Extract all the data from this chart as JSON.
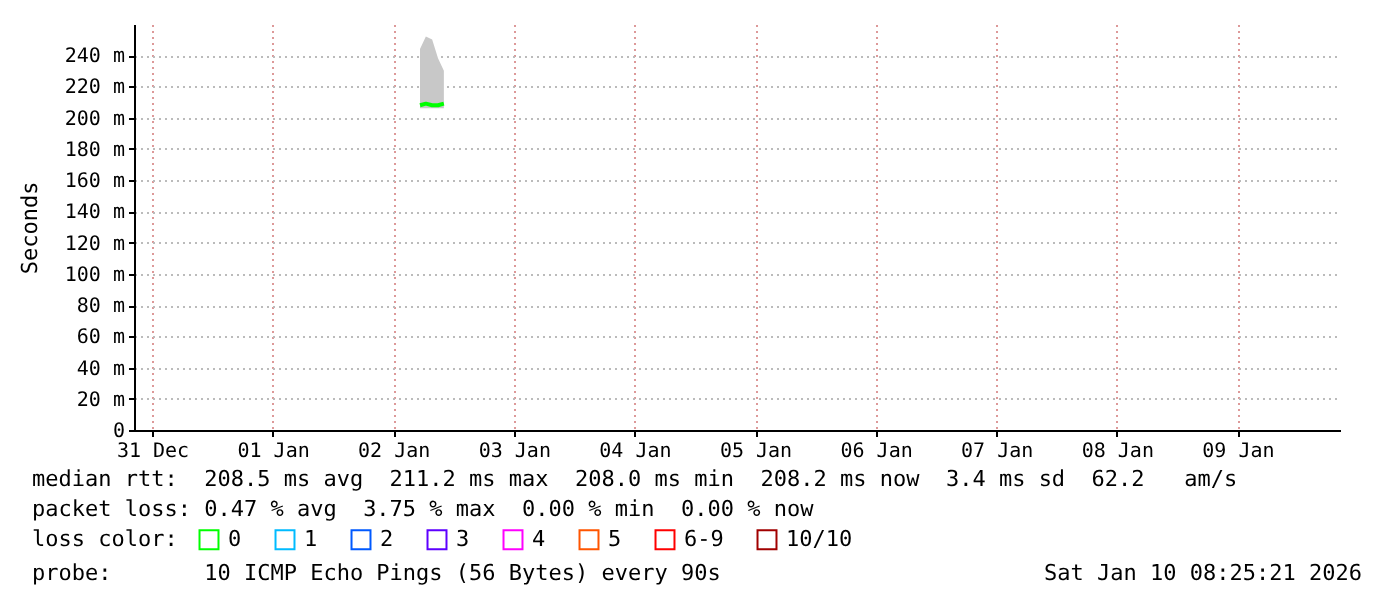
{
  "chart_data": {
    "type": "line",
    "ylabel": "Seconds",
    "x": [
      "2026-01-02T17:20",
      "2026-01-02T18:30",
      "2026-01-02T19:45",
      "2026-01-02T20:55",
      "2026-01-02T22:05"
    ],
    "series": [
      {
        "name": "0",
        "color": "#00ff00",
        "values": [
          208,
          209,
          208,
          208,
          209
        ],
        "lower": [
          206,
          206,
          206,
          206,
          206
        ],
        "upper": [
          244,
          252,
          250,
          238,
          230
        ]
      },
      {
        "name": "1",
        "color": "#00bbff",
        "values": [
          null,
          null,
          null,
          null,
          null
        ]
      },
      {
        "name": "2",
        "color": "#0059ff",
        "values": [
          null,
          null,
          null,
          null,
          null
        ]
      },
      {
        "name": "3",
        "color": "#5e00ff",
        "values": [
          null,
          null,
          null,
          null,
          null
        ]
      },
      {
        "name": "4",
        "color": "#ff00ff",
        "values": [
          null,
          null,
          null,
          null,
          null
        ]
      },
      {
        "name": "5",
        "color": "#ff5500",
        "values": [
          null,
          null,
          null,
          null,
          null
        ]
      },
      {
        "name": "6-9",
        "color": "#ff0000",
        "values": [
          null,
          null,
          null,
          null,
          null
        ]
      },
      {
        "name": "10/10",
        "color": "#a10000",
        "values": [
          null,
          null,
          null,
          null,
          null
        ]
      }
    ],
    "legend_title": "loss color:",
    "legend": "bottom",
    "xlim": [
      "2025-12-31T08:25",
      "2026-01-10T08:25"
    ],
    "xticks": [
      {
        "value": "2025-12-31T12:00",
        "label": "31 Dec"
      },
      {
        "value": "2026-01-01T12:00",
        "label": "01 Jan"
      },
      {
        "value": "2026-01-02T12:00",
        "label": "02 Jan"
      },
      {
        "value": "2026-01-03T12:00",
        "label": "03 Jan"
      },
      {
        "value": "2026-01-04T12:00",
        "label": "04 Jan"
      },
      {
        "value": "2026-01-05T12:00",
        "label": "05 Jan"
      },
      {
        "value": "2026-01-06T12:00",
        "label": "06 Jan"
      },
      {
        "value": "2026-01-07T12:00",
        "label": "07 Jan"
      },
      {
        "value": "2026-01-08T12:00",
        "label": "08 Jan"
      },
      {
        "value": "2026-01-09T12:00",
        "label": "09 Jan"
      }
    ],
    "ylim": [
      0,
      260
    ],
    "yticks": [
      {
        "value": 0,
        "label": "0"
      },
      {
        "value": 20,
        "label": "20 m"
      },
      {
        "value": 40,
        "label": "40 m"
      },
      {
        "value": 60,
        "label": "60 m"
      },
      {
        "value": 80,
        "label": "80 m"
      },
      {
        "value": 100,
        "label": "100 m"
      },
      {
        "value": 120,
        "label": "120 m"
      },
      {
        "value": 140,
        "label": "140 m"
      },
      {
        "value": 160,
        "label": "160 m"
      },
      {
        "value": 180,
        "label": "180 m"
      },
      {
        "value": 200,
        "label": "200 m"
      },
      {
        "value": 220,
        "label": "220 m"
      },
      {
        "value": 240,
        "label": "240 m"
      }
    ],
    "grid": true,
    "marker": "none",
    "line_style": "solid",
    "annotations": [
      "median rtt:  208.5 ms avg  211.2 ms max  208.0 ms min  208.2 ms now  3.4 ms sd  62.2   am/s",
      "packet loss: 0.47 % avg  3.75 % max  0.00 % min  0.00 % now",
      "probe:       10 ICMP Echo Pings (56 Bytes) every 90s",
      "Sat Jan 10 08:25:21 2026"
    ]
  }
}
